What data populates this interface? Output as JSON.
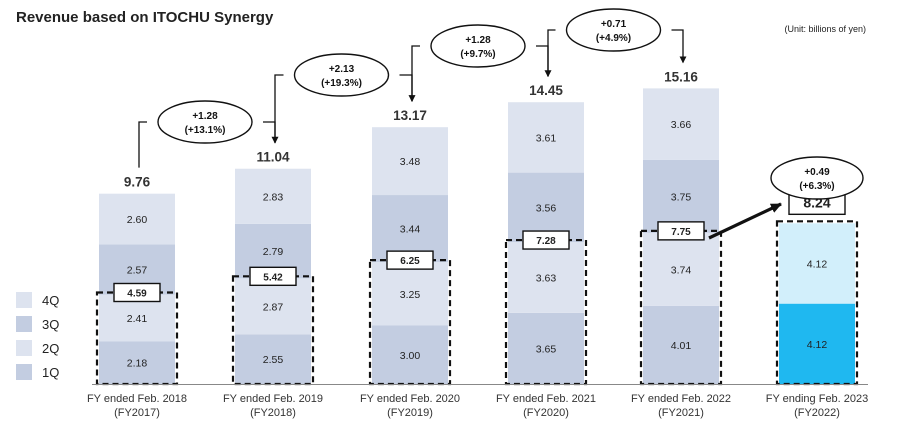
{
  "chart_data": {
    "type": "bar",
    "stacked": true,
    "title": "Revenue based on ITOCHU Synergy",
    "unit_note": "(Unit: billions of yen)",
    "categories": [
      [
        "FY ended Feb. 2018",
        "(FY2017)"
      ],
      [
        "FY ended Feb. 2019",
        "(FY2018)"
      ],
      [
        "FY ended Feb. 2020",
        "(FY2019)"
      ],
      [
        "FY ended Feb. 2021",
        "(FY2020)"
      ],
      [
        "FY ended Feb. 2022",
        "(FY2021)"
      ],
      [
        "FY ending Feb. 2023",
        "(FY2022)"
      ]
    ],
    "series": [
      {
        "name": "1Q",
        "values": [
          2.18,
          2.55,
          3.0,
          3.65,
          4.01,
          4.12
        ],
        "color": "#c3cde1"
      },
      {
        "name": "2Q",
        "values": [
          2.41,
          2.87,
          3.25,
          3.63,
          3.74,
          4.12
        ],
        "color": "#dde3ef"
      },
      {
        "name": "3Q",
        "values": [
          2.57,
          2.79,
          3.44,
          3.56,
          3.75,
          null
        ],
        "color": "#c3cde1"
      },
      {
        "name": "4Q",
        "values": [
          2.6,
          2.83,
          3.48,
          3.61,
          3.66,
          null
        ],
        "color": "#dde3ef"
      }
    ],
    "forecast_colors": {
      "1Q": "#1fb8f0",
      "2Q": "#d2effb"
    },
    "totals": [
      "9.76",
      "11.04",
      "13.17",
      "14.45",
      "15.16",
      null
    ],
    "first_half_totals": [
      "4.59",
      "5.42",
      "6.25",
      "7.28",
      "7.75",
      "8.24"
    ],
    "growth": [
      {
        "value": "+1.28",
        "pct": "(+13.1%)"
      },
      {
        "value": "+2.13",
        "pct": "(+19.3%)"
      },
      {
        "value": "+1.28",
        "pct": "(+9.7%)"
      },
      {
        "value": "+0.71",
        "pct": "(+4.9%)"
      },
      {
        "value": "+0.49",
        "pct": "(+6.3%)"
      }
    ],
    "legend": [
      "4Q",
      "3Q",
      "2Q",
      "1Q"
    ],
    "legend_position": "left",
    "grid": false
  }
}
